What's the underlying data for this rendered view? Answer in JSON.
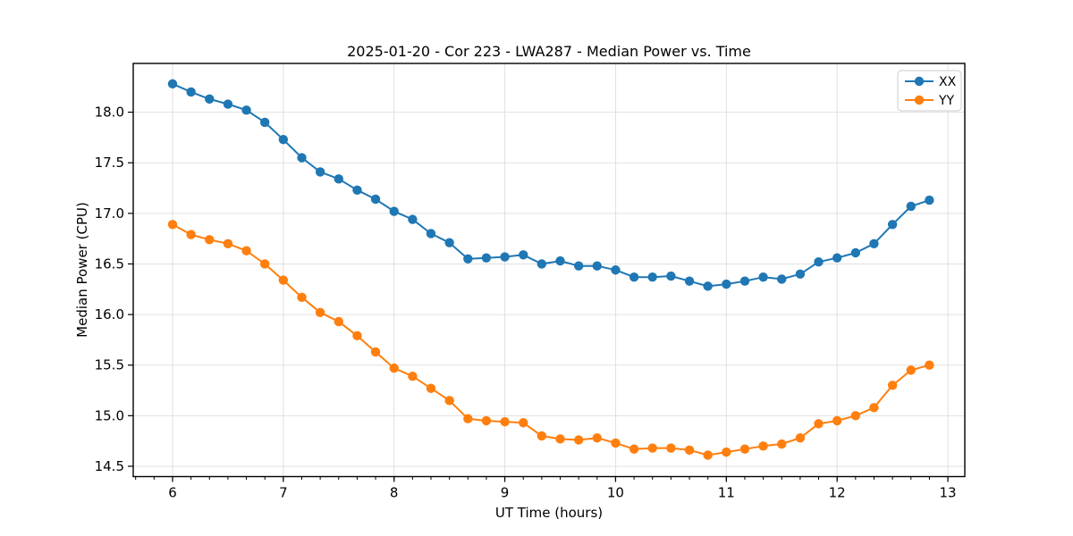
{
  "chart_data": {
    "type": "line",
    "title": "2025-01-20 - Cor 223 - LWA287 - Median Power vs. Time",
    "xlabel": "UT Time (hours)",
    "ylabel": "Median Power (CPU)",
    "xlim": [
      5.645,
      13.153
    ],
    "ylim": [
      14.398,
      18.482
    ],
    "grid": true,
    "grid_color": "#e0e0e0",
    "background_color": "#ffffff",
    "spine_color": "#000000",
    "legend": {
      "position": "upper right",
      "border_color": "#cccccc",
      "fill": "#ffffff"
    },
    "xticks": {
      "values": [
        6,
        7,
        8,
        9,
        10,
        11,
        12,
        13
      ],
      "labels": [
        "6",
        "7",
        "8",
        "9",
        "10",
        "11",
        "12",
        "13"
      ],
      "minor_step": 0.166667
    },
    "yticks": {
      "values": [
        14.5,
        15.0,
        15.5,
        16.0,
        16.5,
        17.0,
        17.5,
        18.0
      ],
      "labels": [
        "14.5",
        "15.0",
        "15.5",
        "16.0",
        "16.5",
        "17.0",
        "17.5",
        "18.0"
      ]
    },
    "x": [
      6.0,
      6.167,
      6.333,
      6.5,
      6.667,
      6.833,
      7.0,
      7.167,
      7.333,
      7.5,
      7.667,
      7.833,
      8.0,
      8.167,
      8.333,
      8.5,
      8.667,
      8.833,
      9.0,
      9.167,
      9.333,
      9.5,
      9.667,
      9.833,
      10.0,
      10.167,
      10.333,
      10.5,
      10.667,
      10.833,
      11.0,
      11.167,
      11.333,
      11.5,
      11.667,
      11.833,
      12.0,
      12.167,
      12.333,
      12.5,
      12.667,
      12.833
    ],
    "series": [
      {
        "name": "XX",
        "color": "#1f77b4",
        "marker": "circle",
        "values": [
          18.28,
          18.2,
          18.13,
          18.08,
          18.02,
          17.9,
          17.73,
          17.55,
          17.41,
          17.34,
          17.23,
          17.14,
          17.02,
          16.94,
          16.8,
          16.71,
          16.55,
          16.56,
          16.57,
          16.59,
          16.5,
          16.53,
          16.48,
          16.48,
          16.44,
          16.37,
          16.37,
          16.38,
          16.33,
          16.28,
          16.3,
          16.33,
          16.37,
          16.35,
          16.4,
          16.52,
          16.56,
          16.61,
          16.7,
          16.89,
          17.07,
          17.13
        ]
      },
      {
        "name": "YY",
        "color": "#ff7f0e",
        "marker": "circle",
        "values": [
          16.89,
          16.79,
          16.74,
          16.7,
          16.63,
          16.5,
          16.34,
          16.17,
          16.02,
          15.93,
          15.79,
          15.63,
          15.47,
          15.39,
          15.27,
          15.15,
          14.97,
          14.95,
          14.94,
          14.93,
          14.8,
          14.77,
          14.76,
          14.78,
          14.73,
          14.67,
          14.68,
          14.68,
          14.66,
          14.61,
          14.64,
          14.67,
          14.7,
          14.72,
          14.78,
          14.92,
          14.95,
          15.0,
          15.08,
          15.3,
          15.45,
          15.5
        ]
      }
    ]
  }
}
